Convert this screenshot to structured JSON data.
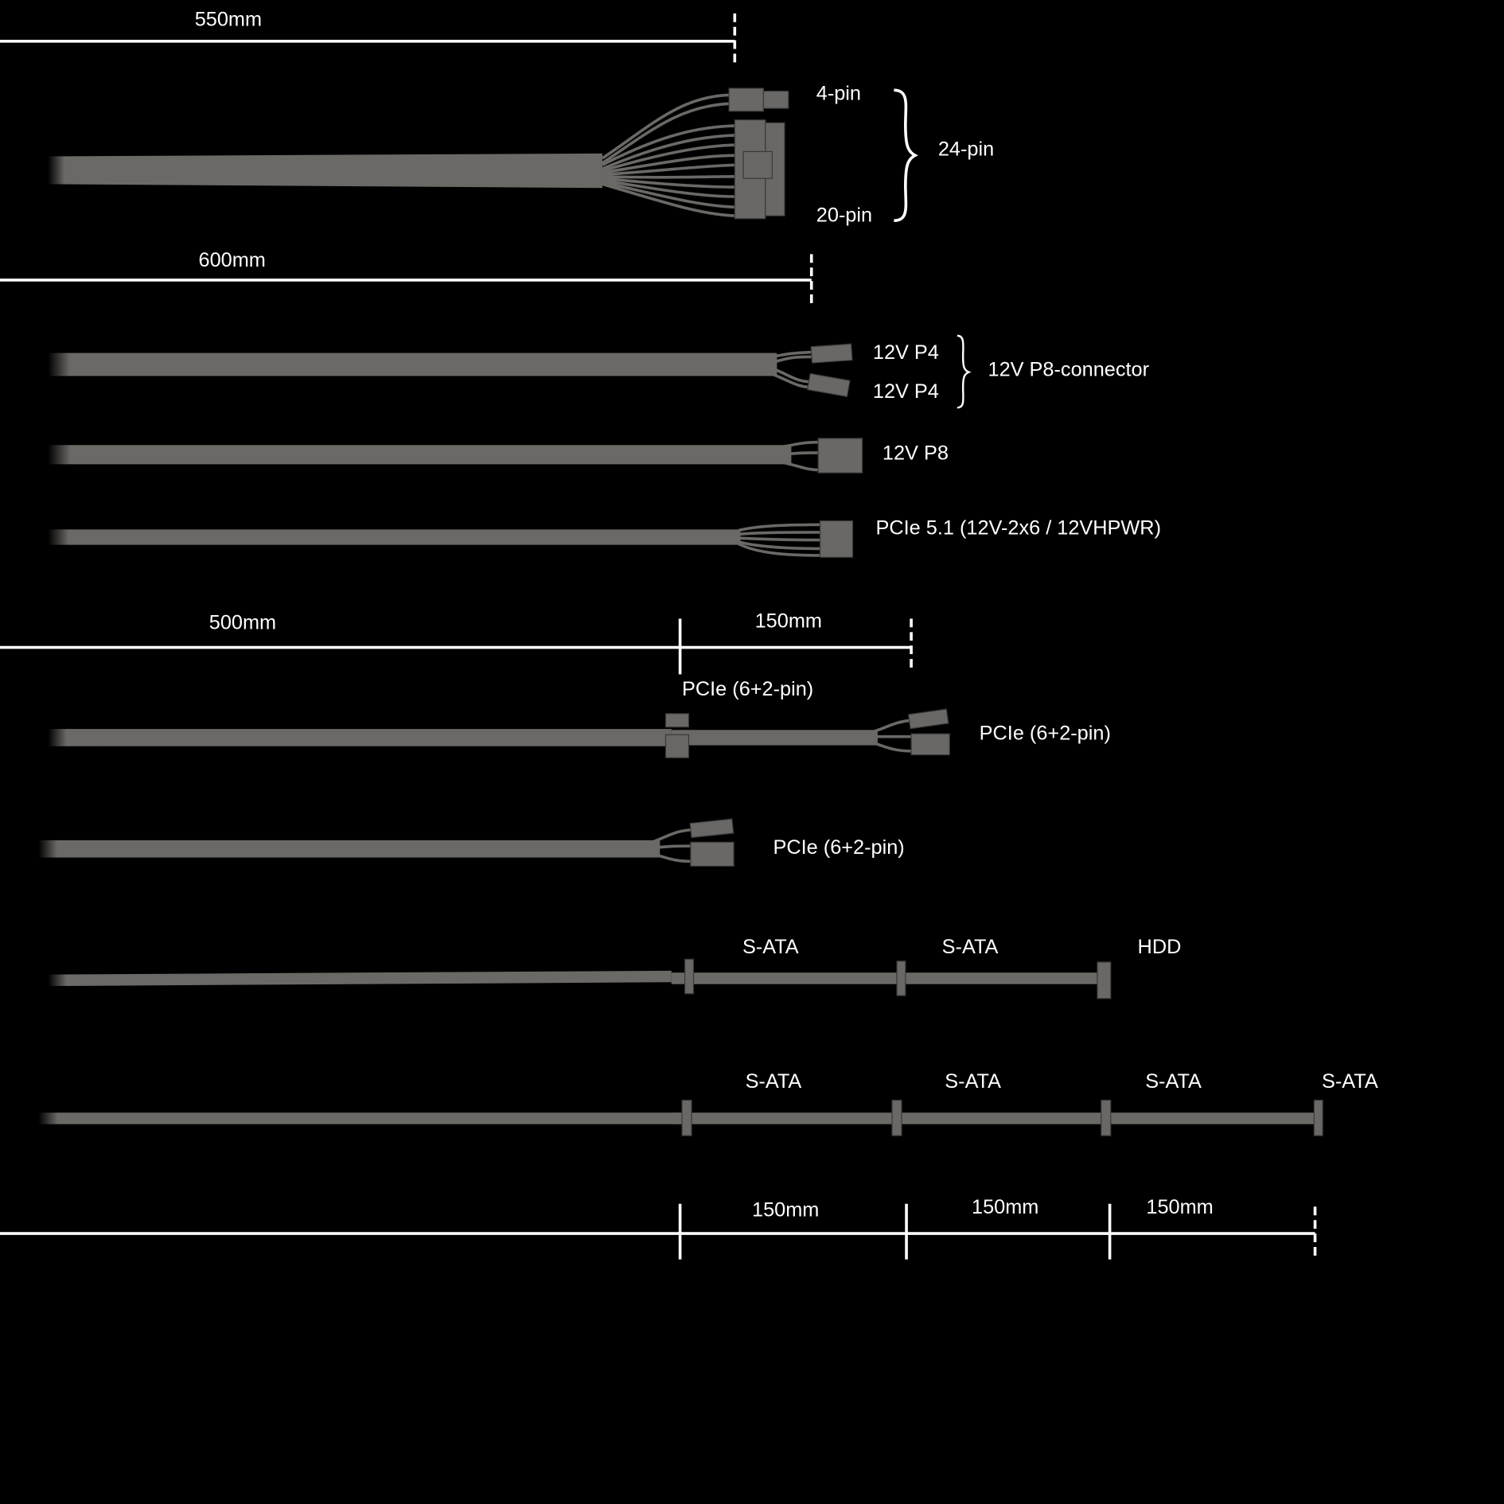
{
  "colors": {
    "background": "#000000",
    "cable": "#6b6966",
    "text": "#ffffff"
  },
  "dimensions": {
    "atx_length": "550mm",
    "eps_length": "600mm",
    "pcie_first": "500mm",
    "pcie_second": "150mm",
    "sata_segments": [
      "150mm",
      "150mm",
      "150mm"
    ]
  },
  "labels": {
    "atx_4pin": "4-pin",
    "atx_20pin": "20-pin",
    "atx_24pin": "24-pin",
    "eps_p4_a": "12V P4",
    "eps_p4_b": "12V P4",
    "eps_p8_connector": "12V P8-connector",
    "eps_p8": "12V P8",
    "pcie51": "PCIe 5.1 (12V-2x6 / 12VHPWR)",
    "pcie_mid": "PCIe (6+2-pin)",
    "pcie_end": "PCIe (6+2-pin)",
    "pcie_single": "PCIe (6+2-pin)",
    "sata_row1": [
      "S-ATA",
      "S-ATA",
      "HDD"
    ],
    "sata_row2": [
      "S-ATA",
      "S-ATA",
      "S-ATA",
      "S-ATA"
    ]
  }
}
